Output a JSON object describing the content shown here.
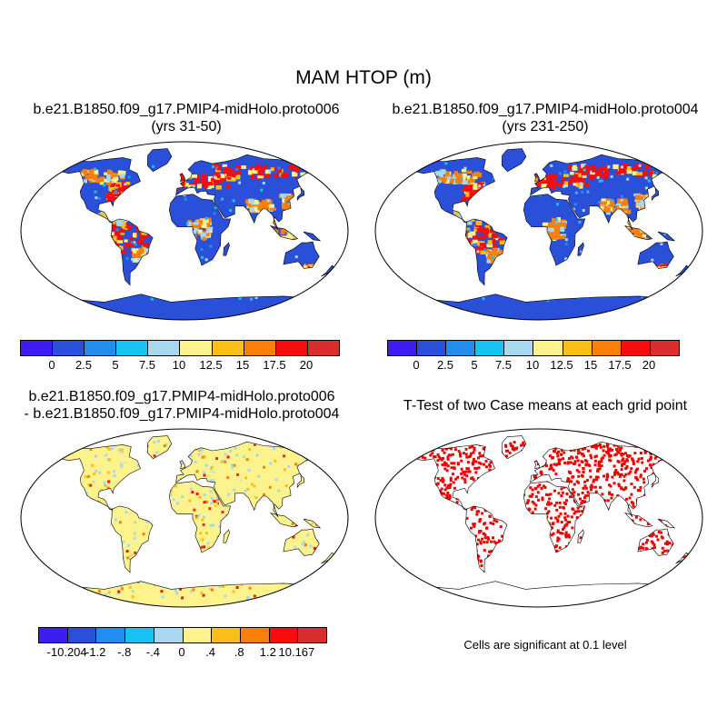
{
  "title": "MAM HTOP (m)",
  "panels": {
    "top_left": {
      "line1": "b.e21.B1850.f09_g17.PMIP4-midHolo.proto006",
      "line2": "(yrs 31-50)"
    },
    "top_right": {
      "line1": "b.e21.B1850.f09_g17.PMIP4-midHolo.proto004",
      "line2": "(yrs 231-250)"
    },
    "bottom_left": {
      "line1": "b.e21.B1850.f09_g17.PMIP4-midHolo.proto006",
      "line2": "- b.e21.B1850.f09_g17.PMIP4-midHolo.proto004"
    },
    "bottom_right": {
      "line1": "T-Test of two Case means at each grid point"
    }
  },
  "colors": {
    "abs_scale": [
      "#3c1ef5",
      "#2a4fd8",
      "#1f8ef0",
      "#18c2f2",
      "#a8d8ef",
      "#fdf38c",
      "#fbbf16",
      "#f97f08",
      "#f70d0d",
      "#d92e2e"
    ],
    "diff_scale": [
      "#3c1ef5",
      "#2a4fd8",
      "#1f8ef0",
      "#18c2f2",
      "#a8d8ef",
      "#fdf38c",
      "#fbbf16",
      "#f97f08",
      "#f70d0d",
      "#d92e2e"
    ],
    "significance": "#f00000"
  },
  "colorbars": {
    "top_left": [
      "0",
      "2.5",
      "5",
      "7.5",
      "10",
      "12.5",
      "15",
      "17.5",
      "20"
    ],
    "top_right": [
      "0",
      "2.5",
      "5",
      "7.5",
      "10",
      "12.5",
      "15",
      "17.5",
      "20"
    ],
    "bottom_left": [
      "-10.204",
      "-1.2",
      "-.8",
      "-.4",
      "0",
      ".4",
      ".8",
      "1.2",
      "10.167"
    ]
  },
  "note": "Cells are significant at 0.1 level"
}
